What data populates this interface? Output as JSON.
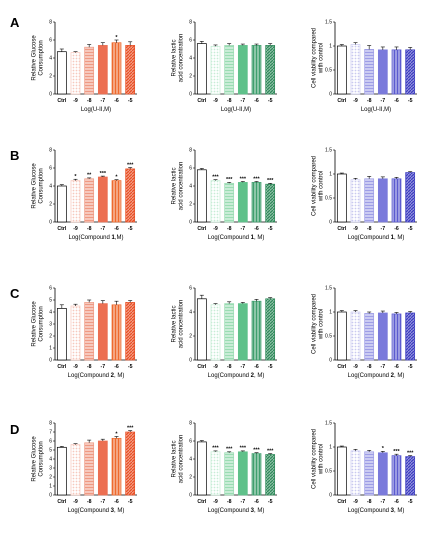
{
  "chart_data": [
    {
      "row": "A",
      "panel_label": "A",
      "type": "bar",
      "ylabel": "Relative Glucose Consumption",
      "xlabel": "Log(U-II,M)",
      "ylim": [
        0,
        8
      ],
      "yticks": [
        0,
        2,
        4,
        6,
        8
      ],
      "categories": [
        "Ctrl",
        "-9",
        "-8",
        "-7",
        "-6",
        "-5"
      ],
      "values": [
        4.7,
        4.6,
        5.2,
        5.4,
        5.7,
        5.4
      ],
      "errors": [
        0.3,
        0.1,
        0.3,
        0.3,
        0.3,
        0.4
      ],
      "sig": [
        "",
        "",
        "",
        "",
        "*",
        ""
      ],
      "colors": [
        "#ffffff",
        "#f6c8bd",
        "#ef9a84",
        "#ec6f52",
        "#ee6a2e",
        "#e84f24"
      ],
      "patterns": [
        "none",
        "dots",
        "hlines",
        "none",
        "vlines",
        "diag"
      ]
    },
    {
      "row": "A",
      "type": "bar",
      "ylabel": "Relative lactic acid concentration",
      "xlabel": "Log(U-II,M)",
      "ylim": [
        0,
        8
      ],
      "yticks": [
        0,
        2,
        4,
        6,
        8
      ],
      "categories": [
        "Ctrl",
        "-9",
        "-8",
        "-7",
        "-6",
        "-5"
      ],
      "values": [
        5.6,
        5.3,
        5.4,
        5.4,
        5.4,
        5.4
      ],
      "errors": [
        0.25,
        0.15,
        0.2,
        0.15,
        0.15,
        0.2
      ],
      "sig": [
        "",
        "",
        "",
        "",
        "",
        ""
      ],
      "colors": [
        "#ffffff",
        "#c7ecd6",
        "#9adcb3",
        "#5fc18a",
        "#3f9f6e",
        "#2f8a5a"
      ],
      "patterns": [
        "none",
        "dots",
        "hlines",
        "none",
        "vlines",
        "diag"
      ]
    },
    {
      "row": "A",
      "type": "bar",
      "ylabel": "Cell viability compared with control",
      "xlabel": "Log(U-II,M)",
      "ylim": [
        0,
        1.5
      ],
      "yticks": [
        0,
        0.5,
        1,
        1.5
      ],
      "categories": [
        "Ctrl",
        "-9",
        "-8",
        "-7",
        "-6",
        "-5"
      ],
      "values": [
        1.0,
        1.03,
        0.93,
        0.92,
        0.92,
        0.92
      ],
      "errors": [
        0.03,
        0.04,
        0.08,
        0.06,
        0.06,
        0.05
      ],
      "sig": [
        "",
        "",
        "",
        "",
        "",
        ""
      ],
      "colors": [
        "#ffffff",
        "#c9c9ef",
        "#9e9ee6",
        "#7a7adb",
        "#5b5bd0",
        "#3b3bc0"
      ],
      "patterns": [
        "none",
        "dots",
        "hlines",
        "none",
        "vlines",
        "diag"
      ]
    },
    {
      "row": "B",
      "panel_label": "B",
      "type": "bar",
      "ylabel": "Relative Glucose Consumption",
      "xlabel": "Log(Compound 1,M)",
      "ylim": [
        0,
        8
      ],
      "yticks": [
        0,
        2,
        4,
        6,
        8
      ],
      "categories": [
        "Ctrl",
        "-9",
        "-8",
        "-7",
        "-6",
        "-5"
      ],
      "values": [
        4.0,
        4.6,
        4.8,
        5.0,
        4.6,
        5.9
      ],
      "errors": [
        0.15,
        0.15,
        0.1,
        0.1,
        0.1,
        0.15
      ],
      "sig": [
        "",
        "*",
        "**",
        "***",
        "*",
        "***"
      ],
      "colors": [
        "#ffffff",
        "#f6c8bd",
        "#ef9a84",
        "#ec6f52",
        "#ee6a2e",
        "#e84f24"
      ],
      "patterns": [
        "none",
        "dots",
        "hlines",
        "none",
        "vlines",
        "diag"
      ]
    },
    {
      "row": "B",
      "type": "bar",
      "ylabel": "Relative lactic acid concentration",
      "xlabel": "Log(Compound 1, M)",
      "ylim": [
        0,
        8
      ],
      "yticks": [
        0,
        2,
        4,
        6,
        8
      ],
      "categories": [
        "Ctrl",
        "-9",
        "-8",
        "-7",
        "-6",
        "-5"
      ],
      "values": [
        5.8,
        4.6,
        4.3,
        4.4,
        4.4,
        4.2
      ],
      "errors": [
        0.15,
        0.1,
        0.1,
        0.1,
        0.1,
        0.1
      ],
      "sig": [
        "",
        "***",
        "***",
        "***",
        "***",
        "***"
      ],
      "colors": [
        "#ffffff",
        "#c7ecd6",
        "#9adcb3",
        "#5fc18a",
        "#3f9f6e",
        "#2f8a5a"
      ],
      "patterns": [
        "none",
        "dots",
        "hlines",
        "none",
        "vlines",
        "diag"
      ]
    },
    {
      "row": "B",
      "type": "bar",
      "ylabel": "Cell viability compared with control",
      "xlabel": "Log(Compound 1, M)",
      "ylim": [
        0,
        1.5
      ],
      "yticks": [
        0,
        0.5,
        1,
        1.5
      ],
      "categories": [
        "Ctrl",
        "-9",
        "-8",
        "-7",
        "-6",
        "-5"
      ],
      "values": [
        1.0,
        0.88,
        0.9,
        0.9,
        0.9,
        1.03
      ],
      "errors": [
        0.02,
        0.03,
        0.05,
        0.04,
        0.03,
        0.02
      ],
      "sig": [
        "",
        "",
        "",
        "",
        "",
        ""
      ],
      "colors": [
        "#ffffff",
        "#c9c9ef",
        "#9e9ee6",
        "#7a7adb",
        "#5b5bd0",
        "#3b3bc0"
      ],
      "patterns": [
        "none",
        "dots",
        "hlines",
        "none",
        "vlines",
        "diag"
      ]
    },
    {
      "row": "C",
      "panel_label": "C",
      "type": "bar",
      "ylabel": "Relative Glucose Consumption",
      "xlabel": "Log(Compound 2, M)",
      "ylim": [
        0,
        6
      ],
      "yticks": [
        0,
        1,
        2,
        3,
        4,
        5,
        6
      ],
      "categories": [
        "Ctrl",
        "-9",
        "-8",
        "-7",
        "-6",
        "-5"
      ],
      "values": [
        4.3,
        4.5,
        4.8,
        4.7,
        4.6,
        4.8
      ],
      "errors": [
        0.3,
        0.15,
        0.2,
        0.25,
        0.3,
        0.15
      ],
      "sig": [
        "",
        "",
        "",
        "",
        "",
        ""
      ],
      "colors": [
        "#ffffff",
        "#f6c8bd",
        "#ef9a84",
        "#ec6f52",
        "#ee6a2e",
        "#e84f24"
      ],
      "patterns": [
        "none",
        "dots",
        "hlines",
        "none",
        "vlines",
        "diag"
      ]
    },
    {
      "row": "C",
      "type": "bar",
      "ylabel": "Relative lactic acid concentration",
      "xlabel": "Log(Compound 2, M)",
      "ylim": [
        0,
        6
      ],
      "yticks": [
        0,
        2,
        4,
        6
      ],
      "categories": [
        "Ctrl",
        "-9",
        "-8",
        "-7",
        "-6",
        "-5"
      ],
      "values": [
        5.1,
        4.6,
        4.7,
        4.7,
        4.9,
        5.1
      ],
      "errors": [
        0.3,
        0.1,
        0.15,
        0.1,
        0.15,
        0.1
      ],
      "sig": [
        "",
        "",
        "",
        "",
        "",
        ""
      ],
      "colors": [
        "#ffffff",
        "#c7ecd6",
        "#9adcb3",
        "#5fc18a",
        "#3f9f6e",
        "#2f8a5a"
      ],
      "patterns": [
        "none",
        "dots",
        "hlines",
        "none",
        "vlines",
        "diag"
      ]
    },
    {
      "row": "C",
      "type": "bar",
      "ylabel": "Cell viability compared with control",
      "xlabel": "Log(Compound 2, M)",
      "ylim": [
        0,
        1.5
      ],
      "yticks": [
        0,
        0.5,
        1,
        1.5
      ],
      "categories": [
        "Ctrl",
        "-9",
        "-8",
        "-7",
        "-6",
        "-5"
      ],
      "values": [
        1.0,
        1.0,
        0.97,
        0.98,
        0.96,
        0.98
      ],
      "errors": [
        0.03,
        0.03,
        0.03,
        0.04,
        0.03,
        0.03
      ],
      "sig": [
        "",
        "",
        "",
        "",
        "",
        ""
      ],
      "colors": [
        "#ffffff",
        "#c9c9ef",
        "#9e9ee6",
        "#7a7adb",
        "#5b5bd0",
        "#3b3bc0"
      ],
      "patterns": [
        "none",
        "dots",
        "hlines",
        "none",
        "vlines",
        "diag"
      ]
    },
    {
      "row": "D",
      "panel_label": "D",
      "type": "bar",
      "ylabel": "Relative Glucose Consumption",
      "xlabel": "Log(Compound 3, M)",
      "ylim": [
        0,
        8
      ],
      "yticks": [
        0,
        1,
        2,
        3,
        4,
        5,
        6,
        7,
        8
      ],
      "categories": [
        "Ctrl",
        "-9",
        "-8",
        "-7",
        "-6",
        "-5"
      ],
      "values": [
        5.3,
        5.6,
        5.8,
        6.0,
        6.3,
        7.0
      ],
      "errors": [
        0.1,
        0.1,
        0.3,
        0.2,
        0.2,
        0.15
      ],
      "sig": [
        "",
        "",
        "",
        "",
        "*",
        "***"
      ],
      "colors": [
        "#ffffff",
        "#f6c8bd",
        "#ef9a84",
        "#ec6f52",
        "#ee6a2e",
        "#e84f24"
      ],
      "patterns": [
        "none",
        "dots",
        "hlines",
        "none",
        "vlines",
        "diag"
      ]
    },
    {
      "row": "D",
      "type": "bar",
      "ylabel": "Relative lactic acid concentration",
      "xlabel": "Log(Compound 3, M)",
      "ylim": [
        0,
        8
      ],
      "yticks": [
        0,
        2,
        4,
        6,
        8
      ],
      "categories": [
        "Ctrl",
        "-9",
        "-8",
        "-7",
        "-6",
        "-5"
      ],
      "values": [
        5.9,
        4.8,
        4.7,
        4.8,
        4.6,
        4.5
      ],
      "errors": [
        0.15,
        0.1,
        0.1,
        0.1,
        0.1,
        0.1
      ],
      "sig": [
        "",
        "***",
        "***",
        "***",
        "***",
        "***"
      ],
      "colors": [
        "#ffffff",
        "#c7ecd6",
        "#9adcb3",
        "#5fc18a",
        "#3f9f6e",
        "#2f8a5a"
      ],
      "patterns": [
        "none",
        "dots",
        "hlines",
        "none",
        "vlines",
        "diag"
      ]
    },
    {
      "row": "D",
      "type": "bar",
      "ylabel": "Cell viability compared with control",
      "xlabel": "Log(Compound 3, M)",
      "ylim": [
        0,
        1.5
      ],
      "yticks": [
        0,
        0.5,
        1,
        1.5
      ],
      "categories": [
        "Ctrl",
        "-9",
        "-8",
        "-7",
        "-6",
        "-5"
      ],
      "values": [
        1.0,
        0.92,
        0.9,
        0.88,
        0.82,
        0.8
      ],
      "errors": [
        0.02,
        0.03,
        0.03,
        0.03,
        0.03,
        0.02
      ],
      "sig": [
        "",
        "",
        "",
        "*",
        "***",
        "***"
      ],
      "colors": [
        "#ffffff",
        "#c9c9ef",
        "#9e9ee6",
        "#7a7adb",
        "#5b5bd0",
        "#3b3bc0"
      ],
      "patterns": [
        "none",
        "dots",
        "hlines",
        "none",
        "vlines",
        "diag"
      ]
    }
  ]
}
